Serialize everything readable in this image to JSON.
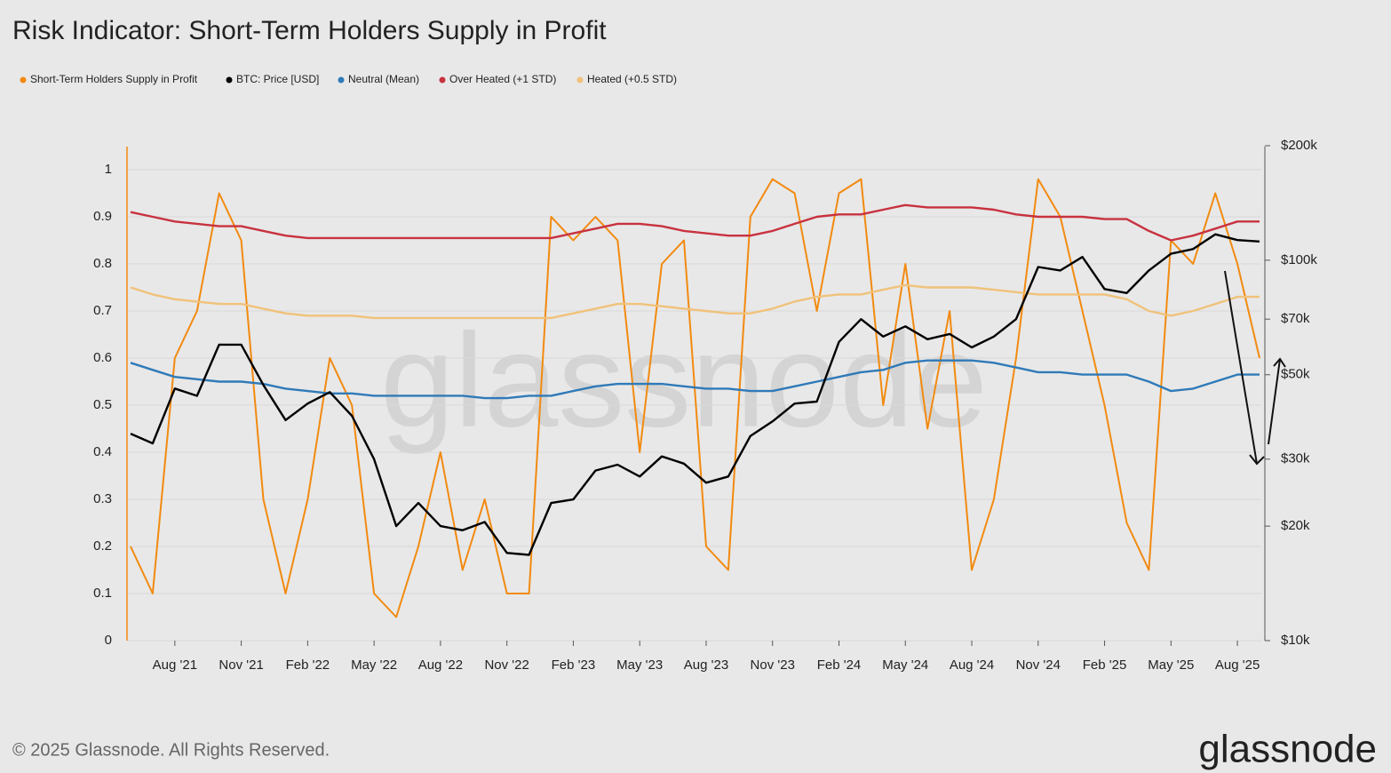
{
  "chart_data": {
    "type": "line",
    "title": "Risk Indicator: Short-Term Holders Supply in Profit",
    "watermark": "glassnode",
    "footer": "© 2025 Glassnode. All Rights Reserved.",
    "logo": "glassnode",
    "x": [
      "2021-06",
      "2021-07",
      "2021-08",
      "2021-09",
      "2021-10",
      "2021-11",
      "2021-12",
      "2022-01",
      "2022-02",
      "2022-03",
      "2022-04",
      "2022-05",
      "2022-06",
      "2022-07",
      "2022-08",
      "2022-09",
      "2022-10",
      "2022-11",
      "2022-12",
      "2023-01",
      "2023-02",
      "2023-03",
      "2023-04",
      "2023-05",
      "2023-06",
      "2023-07",
      "2023-08",
      "2023-09",
      "2023-10",
      "2023-11",
      "2023-12",
      "2024-01",
      "2024-02",
      "2024-03",
      "2024-04",
      "2024-05",
      "2024-06",
      "2024-07",
      "2024-08",
      "2024-09",
      "2024-10",
      "2024-11",
      "2024-12",
      "2025-01",
      "2025-02",
      "2025-03",
      "2025-04",
      "2025-05",
      "2025-06",
      "2025-07",
      "2025-08",
      "2025-09"
    ],
    "xlim": [
      "2021-06",
      "2025-09"
    ],
    "xticks": [
      {
        "value": "2021-08",
        "label": "Aug '21"
      },
      {
        "value": "2021-11",
        "label": "Nov '21"
      },
      {
        "value": "2022-02",
        "label": "Feb '22"
      },
      {
        "value": "2022-05",
        "label": "May '22"
      },
      {
        "value": "2022-08",
        "label": "Aug '22"
      },
      {
        "value": "2022-11",
        "label": "Nov '22"
      },
      {
        "value": "2023-02",
        "label": "Feb '23"
      },
      {
        "value": "2023-05",
        "label": "May '23"
      },
      {
        "value": "2023-08",
        "label": "Aug '23"
      },
      {
        "value": "2023-11",
        "label": "Nov '23"
      },
      {
        "value": "2024-02",
        "label": "Feb '24"
      },
      {
        "value": "2024-05",
        "label": "May '24"
      },
      {
        "value": "2024-08",
        "label": "Aug '24"
      },
      {
        "value": "2024-11",
        "label": "Nov '24"
      },
      {
        "value": "2025-02",
        "label": "Feb '25"
      },
      {
        "value": "2025-05",
        "label": "May '25"
      },
      {
        "value": "2025-08",
        "label": "Aug '25"
      }
    ],
    "ylim": [
      0,
      1
    ],
    "yticks": [
      0,
      0.1,
      0.2,
      0.3,
      0.4,
      0.5,
      0.6,
      0.7,
      0.8,
      0.9,
      1
    ],
    "y2lim": [
      10000,
      200000
    ],
    "y2_log": true,
    "y2ticks": [
      {
        "value": 10000,
        "label": "$10k"
      },
      {
        "value": 20000,
        "label": "$20k"
      },
      {
        "value": 30000,
        "label": "$30k"
      },
      {
        "value": 50000,
        "label": "$50k"
      },
      {
        "value": 70000,
        "label": "$70k"
      },
      {
        "value": 100000,
        "label": "$100k"
      },
      {
        "value": 200000,
        "label": "$200k"
      }
    ],
    "grid": true,
    "legend": "top-left",
    "series": [
      {
        "name": "Short-Term Holders Supply in Profit",
        "color": "#f28a10",
        "values": [
          0.2,
          0.1,
          0.6,
          0.7,
          0.95,
          0.85,
          0.3,
          0.1,
          0.3,
          0.6,
          0.5,
          0.1,
          0.05,
          0.2,
          0.4,
          0.15,
          0.3,
          0.1,
          0.1,
          0.9,
          0.85,
          0.9,
          0.85,
          0.4,
          0.8,
          0.85,
          0.2,
          0.15,
          0.9,
          0.98,
          0.95,
          0.7,
          0.95,
          0.98,
          0.5,
          0.8,
          0.45,
          0.7,
          0.15,
          0.3,
          0.6,
          0.98,
          0.9,
          0.7,
          0.5,
          0.25,
          0.15,
          0.85,
          0.8,
          0.95,
          0.8,
          0.6
        ]
      },
      {
        "name": "BTC: Price [USD]",
        "color": "#000000",
        "axis": "y2",
        "values": [
          35000,
          33000,
          46000,
          44000,
          60000,
          60000,
          47000,
          38000,
          42000,
          45000,
          39000,
          30000,
          20000,
          23000,
          20000,
          19500,
          20500,
          17000,
          16800,
          23000,
          23500,
          28000,
          29000,
          27000,
          30500,
          29200,
          26000,
          27000,
          34500,
          37700,
          42000,
          42500,
          61000,
          70000,
          63000,
          67000,
          62000,
          64000,
          59000,
          63000,
          70000,
          96000,
          94000,
          102000,
          84000,
          82000,
          94000,
          104000,
          107000,
          117000,
          113000,
          112000
        ]
      },
      {
        "name": "Neutral (Mean)",
        "color": "#2f7ab8",
        "values": [
          0.59,
          0.575,
          0.56,
          0.555,
          0.55,
          0.55,
          0.545,
          0.535,
          0.53,
          0.525,
          0.525,
          0.52,
          0.52,
          0.52,
          0.52,
          0.52,
          0.515,
          0.515,
          0.52,
          0.52,
          0.53,
          0.54,
          0.545,
          0.545,
          0.545,
          0.54,
          0.535,
          0.535,
          0.53,
          0.53,
          0.54,
          0.55,
          0.56,
          0.57,
          0.575,
          0.59,
          0.595,
          0.595,
          0.595,
          0.59,
          0.58,
          0.57,
          0.57,
          0.565,
          0.565,
          0.565,
          0.55,
          0.53,
          0.535,
          0.55,
          0.565,
          0.565
        ]
      },
      {
        "name": "Over Heated (+1 STD)",
        "color": "#c8323f",
        "values": [
          0.91,
          0.9,
          0.89,
          0.885,
          0.88,
          0.88,
          0.87,
          0.86,
          0.855,
          0.855,
          0.855,
          0.855,
          0.855,
          0.855,
          0.855,
          0.855,
          0.855,
          0.855,
          0.855,
          0.855,
          0.865,
          0.875,
          0.885,
          0.885,
          0.88,
          0.87,
          0.865,
          0.86,
          0.86,
          0.87,
          0.885,
          0.9,
          0.905,
          0.905,
          0.915,
          0.925,
          0.92,
          0.92,
          0.92,
          0.915,
          0.905,
          0.9,
          0.9,
          0.9,
          0.895,
          0.895,
          0.87,
          0.85,
          0.86,
          0.875,
          0.89,
          0.89
        ]
      },
      {
        "name": "Heated (+0.5 STD)",
        "color": "#f0c27b",
        "values": [
          0.75,
          0.735,
          0.725,
          0.72,
          0.715,
          0.715,
          0.705,
          0.695,
          0.69,
          0.69,
          0.69,
          0.685,
          0.685,
          0.685,
          0.685,
          0.685,
          0.685,
          0.685,
          0.685,
          0.685,
          0.695,
          0.705,
          0.715,
          0.715,
          0.71,
          0.705,
          0.7,
          0.695,
          0.695,
          0.705,
          0.72,
          0.73,
          0.735,
          0.735,
          0.745,
          0.755,
          0.75,
          0.75,
          0.75,
          0.745,
          0.74,
          0.735,
          0.735,
          0.735,
          0.735,
          0.725,
          0.7,
          0.69,
          0.7,
          0.715,
          0.73,
          0.73
        ]
      }
    ]
  }
}
